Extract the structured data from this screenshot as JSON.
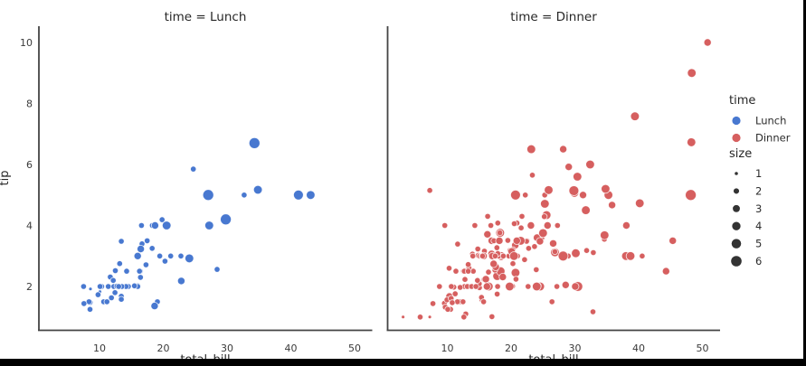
{
  "window": {
    "background": "#000000",
    "figure_background": "#ffffff"
  },
  "colors": {
    "lunch": "#4878d0",
    "dinner": "#d65f5f",
    "legend_size_dot": "#333333",
    "spine": "#444444",
    "tick_text": "#3a3a3a",
    "text": "#262626"
  },
  "chart_data": {
    "type": "scatter",
    "style": "seaborn relplot, faceted by time, white style, no grid",
    "facet_titles": [
      "time = Lunch",
      "time = Dinner"
    ],
    "xlabel": "total_bill",
    "ylabel": "tip",
    "xticks": [
      10,
      20,
      30,
      40,
      50
    ],
    "yticks": [
      2,
      4,
      6,
      8,
      10
    ],
    "xlim": [
      0.5,
      53.3
    ],
    "ylim": [
      0.55,
      10.5
    ],
    "grid": false,
    "legend": {
      "hue_title": "time",
      "hue_entries": [
        {
          "label": "Lunch",
          "color": "#4878d0"
        },
        {
          "label": "Dinner",
          "color": "#d65f5f"
        }
      ],
      "size_title": "size",
      "size_labels": [
        "1",
        "2",
        "3",
        "4",
        "5",
        "6"
      ]
    },
    "point_format": "[total_bill, tip, size]",
    "series": [
      {
        "name": "Lunch",
        "color": "#4878d0",
        "points": [
          [
            27.2,
            4.0,
            4
          ],
          [
            22.76,
            3.0,
            2
          ],
          [
            17.29,
            2.71,
            2
          ],
          [
            19.44,
            3.0,
            2
          ],
          [
            16.66,
            3.4,
            2
          ],
          [
            10.07,
            1.83,
            1
          ],
          [
            32.68,
            5.0,
            2
          ],
          [
            15.98,
            2.03,
            2
          ],
          [
            34.83,
            5.17,
            4
          ],
          [
            13.03,
            2.0,
            2
          ],
          [
            18.28,
            4.0,
            2
          ],
          [
            24.71,
            5.85,
            2
          ],
          [
            21.16,
            3.0,
            2
          ],
          [
            10.65,
            1.5,
            2
          ],
          [
            12.43,
            1.8,
            2
          ],
          [
            24.08,
            2.92,
            4
          ],
          [
            11.69,
            2.31,
            2
          ],
          [
            13.42,
            1.68,
            2
          ],
          [
            14.26,
            2.5,
            2
          ],
          [
            15.95,
            2.0,
            2
          ],
          [
            12.48,
            2.52,
            2
          ],
          [
            29.8,
            4.2,
            6
          ],
          [
            8.52,
            1.48,
            2
          ],
          [
            14.52,
            2.0,
            2
          ],
          [
            11.38,
            2.0,
            2
          ],
          [
            22.82,
            2.18,
            3
          ],
          [
            19.08,
            1.5,
            2
          ],
          [
            20.27,
            2.83,
            2
          ],
          [
            11.17,
            1.5,
            2
          ],
          [
            12.26,
            2.0,
            2
          ],
          [
            18.26,
            3.25,
            2
          ],
          [
            8.51,
            1.25,
            2
          ],
          [
            10.33,
            2.0,
            2
          ],
          [
            14.15,
            2.0,
            2
          ],
          [
            16.0,
            2.0,
            2
          ],
          [
            13.16,
            2.75,
            2
          ],
          [
            17.47,
            3.5,
            2
          ],
          [
            34.3,
            6.7,
            6
          ],
          [
            41.19,
            5.0,
            5
          ],
          [
            27.05,
            5.0,
            6
          ],
          [
            16.43,
            2.3,
            2
          ],
          [
            8.35,
            1.5,
            2
          ],
          [
            18.64,
            1.36,
            3
          ],
          [
            11.87,
            1.63,
            2
          ],
          [
            9.78,
            1.73,
            2
          ],
          [
            7.51,
            2.0,
            2
          ],
          [
            19.81,
            4.19,
            2
          ],
          [
            28.44,
            2.56,
            2
          ],
          [
            15.48,
            2.02,
            2
          ],
          [
            16.58,
            4.0,
            2
          ],
          [
            7.56,
            1.44,
            2
          ],
          [
            10.34,
            2.0,
            2
          ],
          [
            43.11,
            5.0,
            4
          ],
          [
            13.0,
            2.0,
            2
          ],
          [
            13.51,
            2.0,
            2
          ],
          [
            18.71,
            4.0,
            3
          ],
          [
            12.74,
            2.01,
            2
          ],
          [
            13.0,
            2.0,
            2
          ],
          [
            16.4,
            2.5,
            2
          ],
          [
            20.53,
            4.0,
            4
          ],
          [
            16.47,
            3.23,
            3
          ],
          [
            12.16,
            2.2,
            2
          ],
          [
            13.42,
            3.48,
            2
          ],
          [
            8.58,
            1.92,
            1
          ],
          [
            15.98,
            3.0,
            3
          ],
          [
            13.42,
            1.58,
            2
          ],
          [
            16.27,
            2.5,
            2
          ],
          [
            10.09,
            2.0,
            2
          ]
        ]
      },
      {
        "name": "Dinner",
        "color": "#d65f5f",
        "points": [
          [
            16.99,
            1.01,
            2
          ],
          [
            10.34,
            1.66,
            3
          ],
          [
            21.01,
            3.5,
            3
          ],
          [
            23.68,
            3.31,
            2
          ],
          [
            24.59,
            3.61,
            4
          ],
          [
            25.29,
            4.71,
            4
          ],
          [
            8.77,
            2.0,
            2
          ],
          [
            26.88,
            3.12,
            4
          ],
          [
            15.04,
            1.96,
            2
          ],
          [
            14.78,
            3.23,
            2
          ],
          [
            10.27,
            1.71,
            2
          ],
          [
            35.26,
            5.0,
            4
          ],
          [
            15.42,
            1.57,
            2
          ],
          [
            18.43,
            3.0,
            4
          ],
          [
            14.83,
            3.02,
            2
          ],
          [
            21.58,
            3.92,
            2
          ],
          [
            10.33,
            1.67,
            3
          ],
          [
            16.29,
            3.71,
            3
          ],
          [
            16.97,
            3.5,
            3
          ],
          [
            20.65,
            3.35,
            3
          ],
          [
            17.92,
            4.08,
            2
          ],
          [
            20.29,
            2.75,
            2
          ],
          [
            15.77,
            2.23,
            2
          ],
          [
            39.42,
            7.58,
            4
          ],
          [
            19.82,
            3.18,
            2
          ],
          [
            17.81,
            2.34,
            4
          ],
          [
            13.37,
            2.0,
            2
          ],
          [
            12.69,
            2.0,
            2
          ],
          [
            21.7,
            4.3,
            2
          ],
          [
            19.65,
            3.0,
            2
          ],
          [
            9.55,
            1.45,
            2
          ],
          [
            18.35,
            2.5,
            4
          ],
          [
            15.06,
            3.0,
            2
          ],
          [
            20.69,
            2.45,
            4
          ],
          [
            17.78,
            3.27,
            2
          ],
          [
            24.06,
            3.6,
            3
          ],
          [
            16.31,
            2.0,
            3
          ],
          [
            16.93,
            3.07,
            3
          ],
          [
            18.69,
            2.31,
            3
          ],
          [
            31.27,
            5.0,
            3
          ],
          [
            16.04,
            2.24,
            3
          ],
          [
            17.46,
            2.54,
            2
          ],
          [
            13.94,
            3.06,
            2
          ],
          [
            9.68,
            1.32,
            2
          ],
          [
            30.4,
            5.6,
            4
          ],
          [
            18.29,
            3.0,
            2
          ],
          [
            22.23,
            5.0,
            2
          ],
          [
            32.4,
            6.0,
            4
          ],
          [
            28.55,
            2.05,
            3
          ],
          [
            18.04,
            3.0,
            2
          ],
          [
            12.54,
            2.5,
            2
          ],
          [
            10.29,
            2.6,
            2
          ],
          [
            34.81,
            5.2,
            4
          ],
          [
            9.94,
            1.56,
            2
          ],
          [
            25.56,
            4.34,
            4
          ],
          [
            19.49,
            3.51,
            2
          ],
          [
            38.01,
            3.0,
            4
          ],
          [
            26.41,
            1.5,
            2
          ],
          [
            11.24,
            1.76,
            2
          ],
          [
            48.27,
            6.73,
            4
          ],
          [
            20.29,
            3.21,
            2
          ],
          [
            13.81,
            2.0,
            2
          ],
          [
            11.02,
            1.98,
            2
          ],
          [
            18.29,
            3.76,
            4
          ],
          [
            17.59,
            2.64,
            3
          ],
          [
            20.08,
            3.15,
            3
          ],
          [
            16.45,
            2.47,
            2
          ],
          [
            3.07,
            1.0,
            1
          ],
          [
            20.23,
            2.01,
            2
          ],
          [
            15.01,
            2.09,
            2
          ],
          [
            12.02,
            1.97,
            2
          ],
          [
            17.07,
            3.0,
            3
          ],
          [
            26.86,
            3.14,
            2
          ],
          [
            25.28,
            5.0,
            2
          ],
          [
            14.73,
            2.2,
            2
          ],
          [
            10.51,
            1.25,
            2
          ],
          [
            17.92,
            3.08,
            2
          ],
          [
            28.97,
            3.0,
            2
          ],
          [
            22.49,
            3.5,
            2
          ],
          [
            5.75,
            1.0,
            2
          ],
          [
            16.32,
            4.3,
            2
          ],
          [
            22.75,
            3.25,
            2
          ],
          [
            40.17,
            4.73,
            4
          ],
          [
            27.28,
            4.0,
            2
          ],
          [
            12.03,
            1.5,
            2
          ],
          [
            21.01,
            3.0,
            2
          ],
          [
            12.46,
            1.5,
            2
          ],
          [
            11.35,
            2.5,
            2
          ],
          [
            15.38,
            3.0,
            2
          ],
          [
            44.3,
            2.5,
            3
          ],
          [
            22.42,
            3.48,
            2
          ],
          [
            20.92,
            4.08,
            2
          ],
          [
            15.36,
            1.64,
            2
          ],
          [
            20.49,
            4.06,
            2
          ],
          [
            25.21,
            4.29,
            2
          ],
          [
            18.24,
            3.76,
            2
          ],
          [
            14.31,
            4.0,
            2
          ],
          [
            14.0,
            3.0,
            2
          ],
          [
            7.25,
            1.0,
            1
          ],
          [
            38.07,
            4.0,
            3
          ],
          [
            23.95,
            2.55,
            2
          ],
          [
            25.71,
            4.0,
            3
          ],
          [
            17.31,
            3.5,
            2
          ],
          [
            29.93,
            5.07,
            4
          ],
          [
            14.07,
            2.5,
            2
          ],
          [
            13.13,
            2.0,
            2
          ],
          [
            17.26,
            2.74,
            3
          ],
          [
            24.55,
            2.0,
            4
          ],
          [
            19.77,
            2.0,
            4
          ],
          [
            29.85,
            5.14,
            5
          ],
          [
            48.17,
            5.0,
            6
          ],
          [
            25.0,
            3.75,
            4
          ],
          [
            13.39,
            2.61,
            2
          ],
          [
            16.49,
            2.0,
            4
          ],
          [
            21.5,
            3.5,
            4
          ],
          [
            12.66,
            2.5,
            2
          ],
          [
            16.21,
            2.0,
            3
          ],
          [
            13.81,
            2.0,
            2
          ],
          [
            17.51,
            3.0,
            2
          ],
          [
            24.52,
            3.48,
            3
          ],
          [
            20.76,
            2.24,
            2
          ],
          [
            31.71,
            4.5,
            4
          ],
          [
            10.59,
            1.61,
            2
          ],
          [
            10.63,
            2.0,
            2
          ],
          [
            50.81,
            10.0,
            3
          ],
          [
            15.81,
            3.16,
            2
          ],
          [
            7.25,
            5.15,
            2
          ],
          [
            31.85,
            3.18,
            2
          ],
          [
            16.82,
            4.0,
            2
          ],
          [
            32.9,
            3.11,
            2
          ],
          [
            17.89,
            2.0,
            2
          ],
          [
            14.48,
            2.0,
            2
          ],
          [
            9.6,
            4.0,
            2
          ],
          [
            34.63,
            3.55,
            2
          ],
          [
            34.65,
            3.68,
            4
          ],
          [
            23.33,
            5.65,
            2
          ],
          [
            45.35,
            3.5,
            3
          ],
          [
            23.17,
            6.5,
            4
          ],
          [
            40.55,
            3.0,
            2
          ],
          [
            20.69,
            5.0,
            5
          ],
          [
            20.9,
            3.5,
            3
          ],
          [
            30.46,
            2.0,
            5
          ],
          [
            18.15,
            3.5,
            3
          ],
          [
            23.1,
            4.0,
            3
          ],
          [
            15.69,
            1.5,
            2
          ],
          [
            26.59,
            3.41,
            3
          ],
          [
            38.73,
            3.0,
            4
          ],
          [
            24.27,
            2.03,
            2
          ],
          [
            12.76,
            2.23,
            2
          ],
          [
            30.06,
            2.0,
            3
          ],
          [
            25.89,
            5.16,
            4
          ],
          [
            48.33,
            9.0,
            4
          ],
          [
            13.27,
            2.5,
            2
          ],
          [
            28.17,
            6.5,
            3
          ],
          [
            12.9,
            1.1,
            2
          ],
          [
            28.15,
            3.0,
            5
          ],
          [
            11.59,
            1.5,
            2
          ],
          [
            7.74,
            1.44,
            2
          ],
          [
            30.14,
            3.09,
            4
          ],
          [
            20.45,
            3.0,
            4
          ],
          [
            13.28,
            2.72,
            2
          ],
          [
            22.12,
            2.88,
            2
          ],
          [
            24.01,
            2.0,
            4
          ],
          [
            15.69,
            3.0,
            3
          ],
          [
            11.61,
            3.39,
            2
          ],
          [
            10.77,
            1.47,
            2
          ],
          [
            15.53,
            3.0,
            2
          ],
          [
            10.07,
            1.25,
            2
          ],
          [
            12.6,
            1.0,
            2
          ],
          [
            32.83,
            1.17,
            2
          ],
          [
            35.83,
            4.67,
            3
          ],
          [
            29.03,
            5.92,
            3
          ],
          [
            27.18,
            2.0,
            2
          ],
          [
            22.67,
            2.0,
            2
          ],
          [
            17.82,
            1.75,
            2
          ],
          [
            18.78,
            3.0,
            2
          ]
        ]
      }
    ]
  }
}
